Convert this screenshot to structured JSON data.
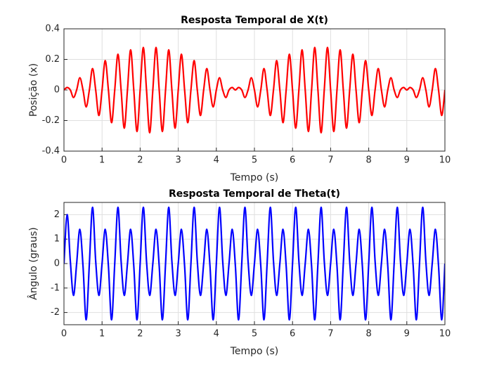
{
  "chart_data": [
    {
      "type": "line",
      "title": "Resposta Temporal de X(t)",
      "x_label": "Tempo (s)",
      "y_label": "Posição (x)",
      "xlim": [
        0,
        10
      ],
      "xticks": [
        0,
        1,
        2,
        3,
        4,
        5,
        6,
        7,
        8,
        9,
        10
      ],
      "ylim": [
        -0.4,
        0.4
      ],
      "yticks": [
        -0.4,
        -0.2,
        0,
        0.2,
        0.4
      ],
      "grid": true,
      "x": [
        0,
        0.083,
        0.167,
        0.25,
        0.333,
        0.417,
        0.5,
        0.583,
        0.667,
        0.75,
        0.833,
        0.917,
        1,
        1.083,
        1.167,
        1.25,
        1.333,
        1.417,
        1.5,
        1.583,
        1.667,
        1.75,
        1.833,
        1.917,
        2,
        2.083,
        2.167,
        2.25,
        2.333,
        2.417,
        2.5,
        2.583,
        2.667,
        2.75,
        2.833,
        2.917,
        3,
        3.083,
        3.167,
        3.25,
        3.333,
        3.417,
        3.5,
        3.583,
        3.667,
        3.75,
        3.833,
        3.917,
        4,
        4.083,
        4.167,
        4.25,
        4.333,
        4.417,
        4.5,
        4.583,
        4.667,
        4.75,
        4.833,
        4.917,
        5,
        5.083,
        5.167,
        5.25,
        5.333,
        5.417,
        5.5,
        5.583,
        5.667,
        5.75,
        5.833,
        5.917,
        6,
        6.083,
        6.167,
        6.25,
        6.333,
        6.417,
        6.5,
        6.583,
        6.667,
        6.75,
        6.833,
        6.917,
        7,
        7.083,
        7.167,
        7.25,
        7.333,
        7.417,
        7.5,
        7.583,
        7.667,
        7.75,
        7.833,
        7.917,
        8,
        8.083,
        8.167,
        8.25,
        8.333,
        8.417,
        8.5,
        8.583,
        8.667,
        8.75,
        8.833,
        8.917,
        9,
        9.083,
        9.167,
        9.25,
        9.333,
        9.417,
        9.5,
        9.583,
        9.667,
        9.75,
        9.833,
        9.917,
        10
      ],
      "series": [
        {
          "color": "#ff0000",
          "values": [
            0,
            0.016,
            0,
            -0.049,
            0,
            0.08,
            0,
            -0.111,
            0,
            0.14,
            0,
            -0.167,
            0,
            0.192,
            0,
            -0.214,
            0,
            0.234,
            0,
            -0.25,
            0,
            0.263,
            0,
            -0.272,
            0,
            0.278,
            0,
            -0.28,
            0,
            0.278,
            0,
            -0.272,
            0,
            0.263,
            0,
            -0.25,
            0,
            0.234,
            0,
            -0.214,
            0,
            0.192,
            0,
            -0.167,
            0,
            0.14,
            0,
            -0.111,
            0,
            0.08,
            0,
            -0.049,
            0,
            0.016,
            0,
            0.016,
            0,
            -0.049,
            0,
            0.08,
            0,
            -0.111,
            0,
            0.14,
            0,
            -0.167,
            0,
            0.192,
            0,
            -0.214,
            0,
            0.234,
            0,
            -0.25,
            0,
            0.263,
            0,
            -0.272,
            0,
            0.278,
            0,
            -0.28,
            0,
            0.278,
            0,
            -0.272,
            0,
            0.263,
            0,
            -0.25,
            0,
            0.234,
            0,
            -0.214,
            0,
            0.192,
            0,
            -0.167,
            0,
            0.14,
            0,
            -0.111,
            0,
            0.08,
            0,
            -0.049,
            0,
            0.016,
            0,
            0.016,
            0,
            -0.049,
            0,
            0.08,
            0,
            -0.111,
            0,
            0.14,
            0,
            -0.167,
            0
          ]
        }
      ]
    },
    {
      "type": "line",
      "title": "Resposta Temporal de Theta(t)",
      "x_label": "Tempo (s)",
      "y_label": "Ângulo (graus)",
      "xlim": [
        0,
        10
      ],
      "xticks": [
        0,
        1,
        2,
        3,
        4,
        5,
        6,
        7,
        8,
        9,
        10
      ],
      "ylim": [
        -2.5,
        2.5
      ],
      "yticks": [
        -2,
        -1,
        0,
        1,
        2
      ],
      "grid": true,
      "x": [
        0,
        0.083,
        0.167,
        0.25,
        0.333,
        0.417,
        0.5,
        0.583,
        0.667,
        0.75,
        0.833,
        0.917,
        1,
        1.083,
        1.167,
        1.25,
        1.333,
        1.417,
        1.5,
        1.583,
        1.667,
        1.75,
        1.833,
        1.917,
        2,
        2.083,
        2.167,
        2.25,
        2.333,
        2.417,
        2.5,
        2.583,
        2.667,
        2.75,
        2.833,
        2.917,
        3,
        3.083,
        3.167,
        3.25,
        3.333,
        3.417,
        3.5,
        3.583,
        3.667,
        3.75,
        3.833,
        3.917,
        4,
        4.083,
        4.167,
        4.25,
        4.333,
        4.417,
        4.5,
        4.583,
        4.667,
        4.75,
        4.833,
        4.917,
        5,
        5.083,
        5.167,
        5.25,
        5.333,
        5.417,
        5.5,
        5.583,
        5.667,
        5.75,
        5.833,
        5.917,
        6,
        6.083,
        6.167,
        6.25,
        6.333,
        6.417,
        6.5,
        6.583,
        6.667,
        6.75,
        6.833,
        6.917,
        7,
        7.083,
        7.167,
        7.25,
        7.333,
        7.417,
        7.5,
        7.583,
        7.667,
        7.75,
        7.833,
        7.917,
        8,
        8.083,
        8.167,
        8.25,
        8.333,
        8.417,
        8.5,
        8.583,
        8.667,
        8.75,
        8.833,
        8.917,
        9,
        9.083,
        9.167,
        9.25,
        9.333,
        9.417,
        9.5,
        9.583,
        9.667,
        9.75,
        9.833,
        9.917,
        10
      ],
      "series": [
        {
          "color": "#0000ff",
          "values": [
            0,
            2.0,
            0.1,
            -1.3,
            0,
            1.4,
            -0.1,
            -2.3,
            0,
            2.3,
            0.1,
            -1.3,
            0,
            1.4,
            -0.1,
            -2.3,
            0,
            2.3,
            0.1,
            -1.3,
            0,
            1.4,
            -0.1,
            -2.3,
            0,
            2.3,
            0.1,
            -1.3,
            0,
            1.4,
            -0.1,
            -2.3,
            0,
            2.3,
            0.1,
            -1.3,
            0,
            1.4,
            -0.1,
            -2.3,
            0,
            2.3,
            0.1,
            -1.3,
            0,
            1.4,
            -0.1,
            -2.3,
            0,
            2.3,
            0.1,
            -1.3,
            0,
            1.4,
            -0.1,
            -2.3,
            0,
            2.3,
            0.1,
            -1.3,
            0,
            1.4,
            -0.1,
            -2.3,
            0,
            2.3,
            0.1,
            -1.3,
            0,
            1.4,
            -0.1,
            -2.3,
            0,
            2.3,
            0.1,
            -1.3,
            0,
            1.4,
            -0.1,
            -2.3,
            0,
            2.3,
            0.1,
            -1.3,
            0,
            1.4,
            -0.1,
            -2.3,
            0,
            2.3,
            0.1,
            -1.3,
            0,
            1.4,
            -0.1,
            -2.3,
            0,
            2.3,
            0.1,
            -1.3,
            0,
            1.4,
            -0.1,
            -2.3,
            0,
            2.3,
            0.1,
            -1.3,
            0,
            1.4,
            -0.1,
            -2.3,
            0,
            2.3,
            0.1,
            -1.3,
            0,
            1.4,
            -0.1,
            -2.3,
            0
          ]
        }
      ]
    }
  ]
}
